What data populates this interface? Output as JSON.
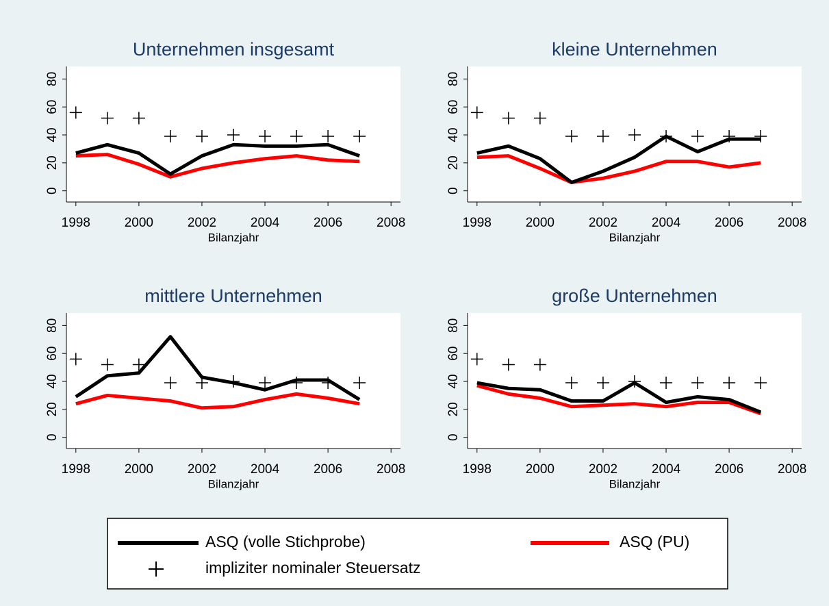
{
  "chart_data": [
    {
      "type": "line",
      "title": "Unternehmen insgesamt",
      "xlabel": "Bilanzjahr",
      "x": [
        1998,
        1999,
        2000,
        2001,
        2002,
        2003,
        2004,
        2005,
        2006,
        2007
      ],
      "series": [
        {
          "values": [
            27,
            33,
            27,
            12,
            25,
            33,
            32,
            32,
            33,
            25
          ]
        },
        {
          "values": [
            25,
            26,
            19,
            10,
            16,
            20,
            23,
            25,
            22,
            21
          ]
        },
        {
          "values": [
            56,
            52,
            52,
            39,
            39,
            40,
            39,
            39,
            39,
            39
          ]
        }
      ],
      "xlim": [
        1997.7,
        2008.3
      ],
      "xticks": [
        1998,
        2000,
        2002,
        2004,
        2006,
        2008
      ],
      "ylim": [
        -8,
        89
      ],
      "yticks": [
        0,
        20,
        40,
        60,
        80
      ]
    },
    {
      "type": "line",
      "title": "kleine Unternehmen",
      "xlabel": "Bilanzjahr",
      "x": [
        1998,
        1999,
        2000,
        2001,
        2002,
        2003,
        2004,
        2005,
        2006,
        2007
      ],
      "series": [
        {
          "values": [
            27,
            32,
            23,
            6,
            14,
            24,
            39,
            28,
            37,
            37
          ]
        },
        {
          "values": [
            24,
            25,
            16,
            6,
            9,
            14,
            21,
            21,
            17,
            20
          ]
        },
        {
          "values": [
            56,
            52,
            52,
            39,
            39,
            40,
            39,
            39,
            39,
            39
          ]
        }
      ],
      "xlim": [
        1997.7,
        2008.3
      ],
      "xticks": [
        1998,
        2000,
        2002,
        2004,
        2006,
        2008
      ],
      "ylim": [
        -8,
        89
      ],
      "yticks": [
        0,
        20,
        40,
        60,
        80
      ]
    },
    {
      "type": "line",
      "title": "mittlere Unternehmen",
      "xlabel": "Bilanzjahr",
      "x": [
        1998,
        1999,
        2000,
        2001,
        2002,
        2003,
        2004,
        2005,
        2006,
        2007
      ],
      "series": [
        {
          "values": [
            29,
            44,
            46,
            72,
            43,
            39,
            34,
            41,
            41,
            27
          ]
        },
        {
          "values": [
            24,
            30,
            28,
            26,
            21,
            22,
            27,
            31,
            28,
            24
          ]
        },
        {
          "values": [
            56,
            52,
            52,
            39,
            39,
            40,
            39,
            39,
            39,
            39
          ]
        }
      ],
      "xlim": [
        1997.7,
        2008.3
      ],
      "xticks": [
        1998,
        2000,
        2002,
        2004,
        2006,
        2008
      ],
      "ylim": [
        -8,
        89
      ],
      "yticks": [
        0,
        20,
        40,
        60,
        80
      ]
    },
    {
      "type": "line",
      "title": "große Unternehmen",
      "xlabel": "Bilanzjahr",
      "x": [
        1998,
        1999,
        2000,
        2001,
        2002,
        2003,
        2004,
        2005,
        2006,
        2007
      ],
      "series": [
        {
          "values": [
            39,
            35,
            34,
            26,
            26,
            39,
            25,
            29,
            27,
            18
          ]
        },
        {
          "values": [
            37,
            31,
            28,
            22,
            23,
            24,
            22,
            25,
            25,
            17
          ]
        },
        {
          "values": [
            56,
            52,
            52,
            39,
            39,
            40,
            39,
            39,
            39,
            39
          ]
        }
      ],
      "xlim": [
        1997.7,
        2008.3
      ],
      "xticks": [
        1998,
        2000,
        2002,
        2004,
        2006,
        2008
      ],
      "ylim": [
        -8,
        89
      ],
      "yticks": [
        0,
        20,
        40,
        60,
        80
      ]
    }
  ],
  "legend": {
    "series": [
      {
        "name": "ASQ (volle Stichprobe)",
        "color": "#000000",
        "mark": "line"
      },
      {
        "name": "ASQ (PU)",
        "color": "#ff0000",
        "mark": "line"
      },
      {
        "name": "impliziter nominaler Steuersatz",
        "color": "#000000",
        "mark": "plus"
      }
    ]
  }
}
